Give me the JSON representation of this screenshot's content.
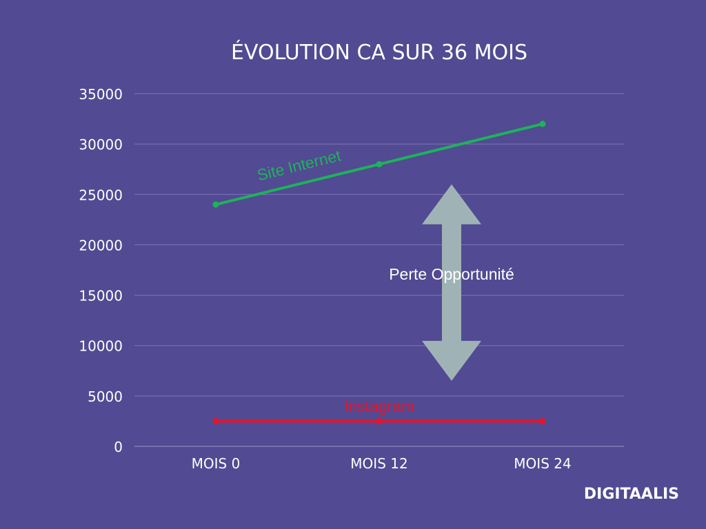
{
  "chart_data": {
    "type": "line",
    "title": "ÉVOLUTION CA SUR 36 MOIS",
    "categories": [
      "MOIS 0",
      "MOIS 12",
      "MOIS 24"
    ],
    "ylim": [
      0,
      35000
    ],
    "yticks": [
      0,
      5000,
      10000,
      15000,
      20000,
      25000,
      30000,
      35000
    ],
    "grid": true,
    "series": [
      {
        "name": "Site Internet",
        "values": [
          24000,
          28000,
          32000
        ],
        "color": "#1db35a"
      },
      {
        "name": "Instagram",
        "values": [
          2500,
          2500,
          2500
        ],
        "color": "#e5142a"
      }
    ],
    "annotations": {
      "gap_label": "Perte Opportunité",
      "arrow_color": "#9fb3b6",
      "arrow_range": [
        6500,
        26000
      ]
    }
  },
  "branding": {
    "logo": "DIGITAALIS"
  }
}
